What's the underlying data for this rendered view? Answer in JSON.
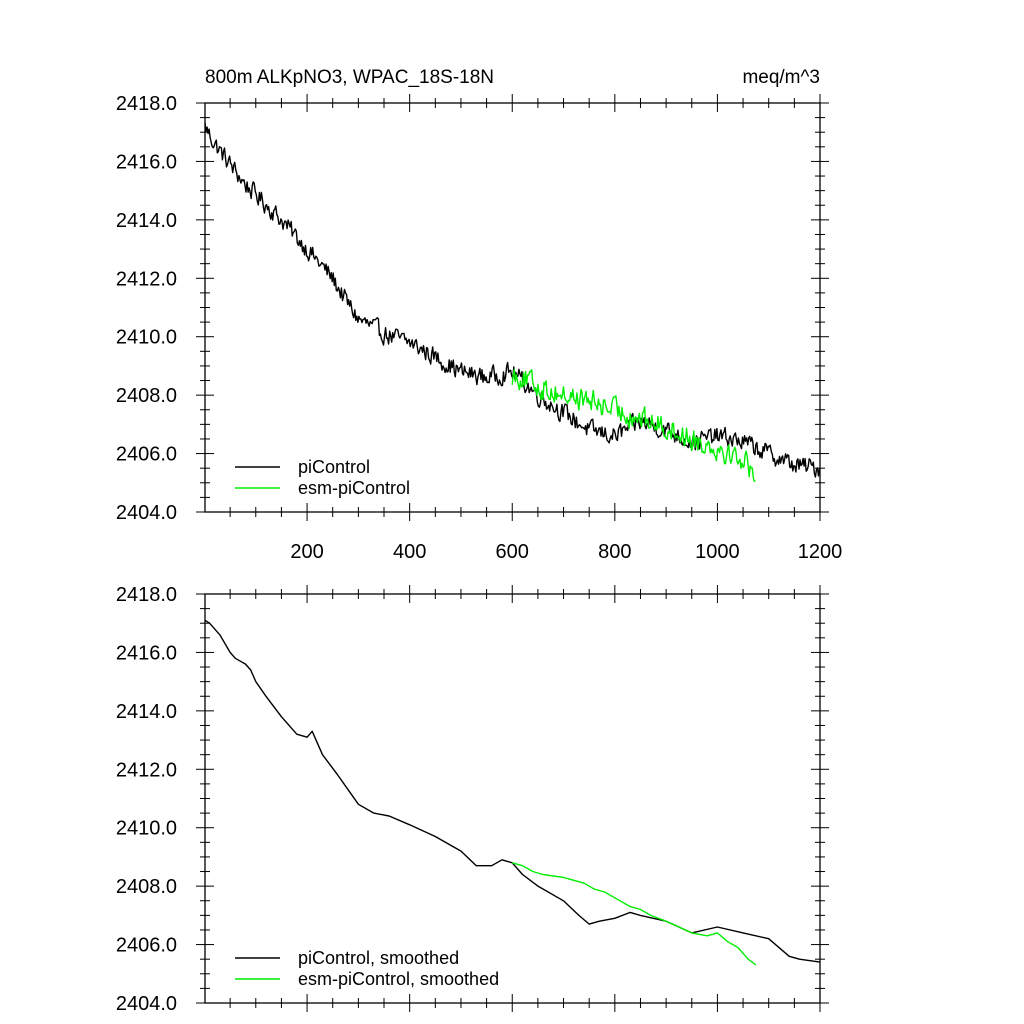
{
  "chart_data": [
    {
      "type": "line",
      "panel": "top",
      "title_left": "800m ALKpNO3, WPAC_18S-18N",
      "title_right": "meq/m^3",
      "xlabel": "",
      "ylabel": "",
      "xlim": [
        1,
        1200
      ],
      "ylim": [
        2404.0,
        2418.0
      ],
      "xticks": [
        200,
        400,
        600,
        800,
        1000,
        1200
      ],
      "xtick_labels": [
        "200",
        "400",
        "600",
        "800",
        "1000",
        "1200"
      ],
      "yticks": [
        2404,
        2406,
        2408,
        2410,
        2412,
        2414,
        2416,
        2418
      ],
      "ytick_labels": [
        "2404.0",
        "2406.0",
        "2408.0",
        "2410.0",
        "2412.0",
        "2414.0",
        "2416.0",
        "2418.0"
      ],
      "grid": false,
      "legend_position": "bottom-left",
      "noise": true,
      "series": [
        {
          "name": "piControl",
          "color": "#000000",
          "x": [
            1,
            20,
            50,
            80,
            110,
            150,
            200,
            250,
            270,
            300,
            350,
            400,
            450,
            500,
            550,
            600,
            650,
            700,
            750,
            800,
            850,
            900,
            950,
            1000,
            1050,
            1100,
            1150,
            1200
          ],
          "y": [
            2417.2,
            2416.6,
            2415.9,
            2415.2,
            2414.7,
            2414.0,
            2413.0,
            2412.0,
            2411.4,
            2410.6,
            2410.1,
            2409.8,
            2409.3,
            2408.8,
            2408.6,
            2408.8,
            2408.0,
            2407.4,
            2406.8,
            2406.6,
            2407.1,
            2406.8,
            2406.4,
            2406.6,
            2406.4,
            2406.0,
            2405.6,
            2405.5
          ]
        },
        {
          "name": "esm-piControl",
          "color": "#00ee00",
          "x": [
            600,
            620,
            650,
            700,
            750,
            800,
            850,
            900,
            950,
            1000,
            1050,
            1075
          ],
          "y": [
            2408.7,
            2408.6,
            2408.3,
            2408.0,
            2407.8,
            2407.5,
            2407.2,
            2406.9,
            2406.5,
            2406.2,
            2405.8,
            2405.3
          ]
        }
      ]
    },
    {
      "type": "line",
      "panel": "bottom",
      "title_left": "",
      "title_right": "",
      "xlabel": "",
      "ylabel": "",
      "xlim": [
        1,
        1200
      ],
      "ylim": [
        2404.0,
        2418.0
      ],
      "xticks": [
        200,
        400,
        600,
        800,
        1000,
        1200
      ],
      "xtick_labels": [],
      "yticks": [
        2404,
        2406,
        2408,
        2410,
        2412,
        2414,
        2416,
        2418
      ],
      "ytick_labels": [
        "2404.0",
        "2406.0",
        "2408.0",
        "2410.0",
        "2412.0",
        "2414.0",
        "2416.0",
        "2418.0"
      ],
      "grid": false,
      "legend_position": "bottom-left",
      "noise": false,
      "series": [
        {
          "name": "piControl, smoothed",
          "color": "#000000",
          "x": [
            1,
            10,
            30,
            50,
            60,
            70,
            80,
            90,
            100,
            120,
            150,
            180,
            200,
            210,
            230,
            260,
            280,
            300,
            330,
            360,
            400,
            450,
            500,
            530,
            560,
            580,
            600,
            620,
            650,
            700,
            730,
            750,
            770,
            800,
            830,
            850,
            900,
            950,
            1000,
            1050,
            1100,
            1140,
            1160,
            1200
          ],
          "y": [
            2417.1,
            2417.0,
            2416.6,
            2416.0,
            2415.8,
            2415.7,
            2415.6,
            2415.4,
            2415.0,
            2414.5,
            2413.8,
            2413.2,
            2413.1,
            2413.3,
            2412.5,
            2411.8,
            2411.3,
            2410.8,
            2410.5,
            2410.4,
            2410.1,
            2409.7,
            2409.2,
            2408.7,
            2408.7,
            2408.9,
            2408.8,
            2408.4,
            2408.0,
            2407.5,
            2407.0,
            2406.7,
            2406.8,
            2406.9,
            2407.1,
            2407.0,
            2406.8,
            2406.4,
            2406.6,
            2406.4,
            2406.2,
            2405.6,
            2405.5,
            2405.4
          ]
        },
        {
          "name": "esm-piControl, smoothed",
          "color": "#00ee00",
          "x": [
            600,
            620,
            640,
            660,
            700,
            740,
            760,
            780,
            800,
            830,
            850,
            870,
            900,
            950,
            980,
            1000,
            1020,
            1040,
            1060,
            1075
          ],
          "y": [
            2408.8,
            2408.7,
            2408.5,
            2408.4,
            2408.3,
            2408.1,
            2407.9,
            2407.8,
            2407.6,
            2407.3,
            2407.2,
            2407.0,
            2406.8,
            2406.4,
            2406.3,
            2406.4,
            2406.1,
            2405.9,
            2405.5,
            2405.3
          ]
        }
      ]
    }
  ]
}
